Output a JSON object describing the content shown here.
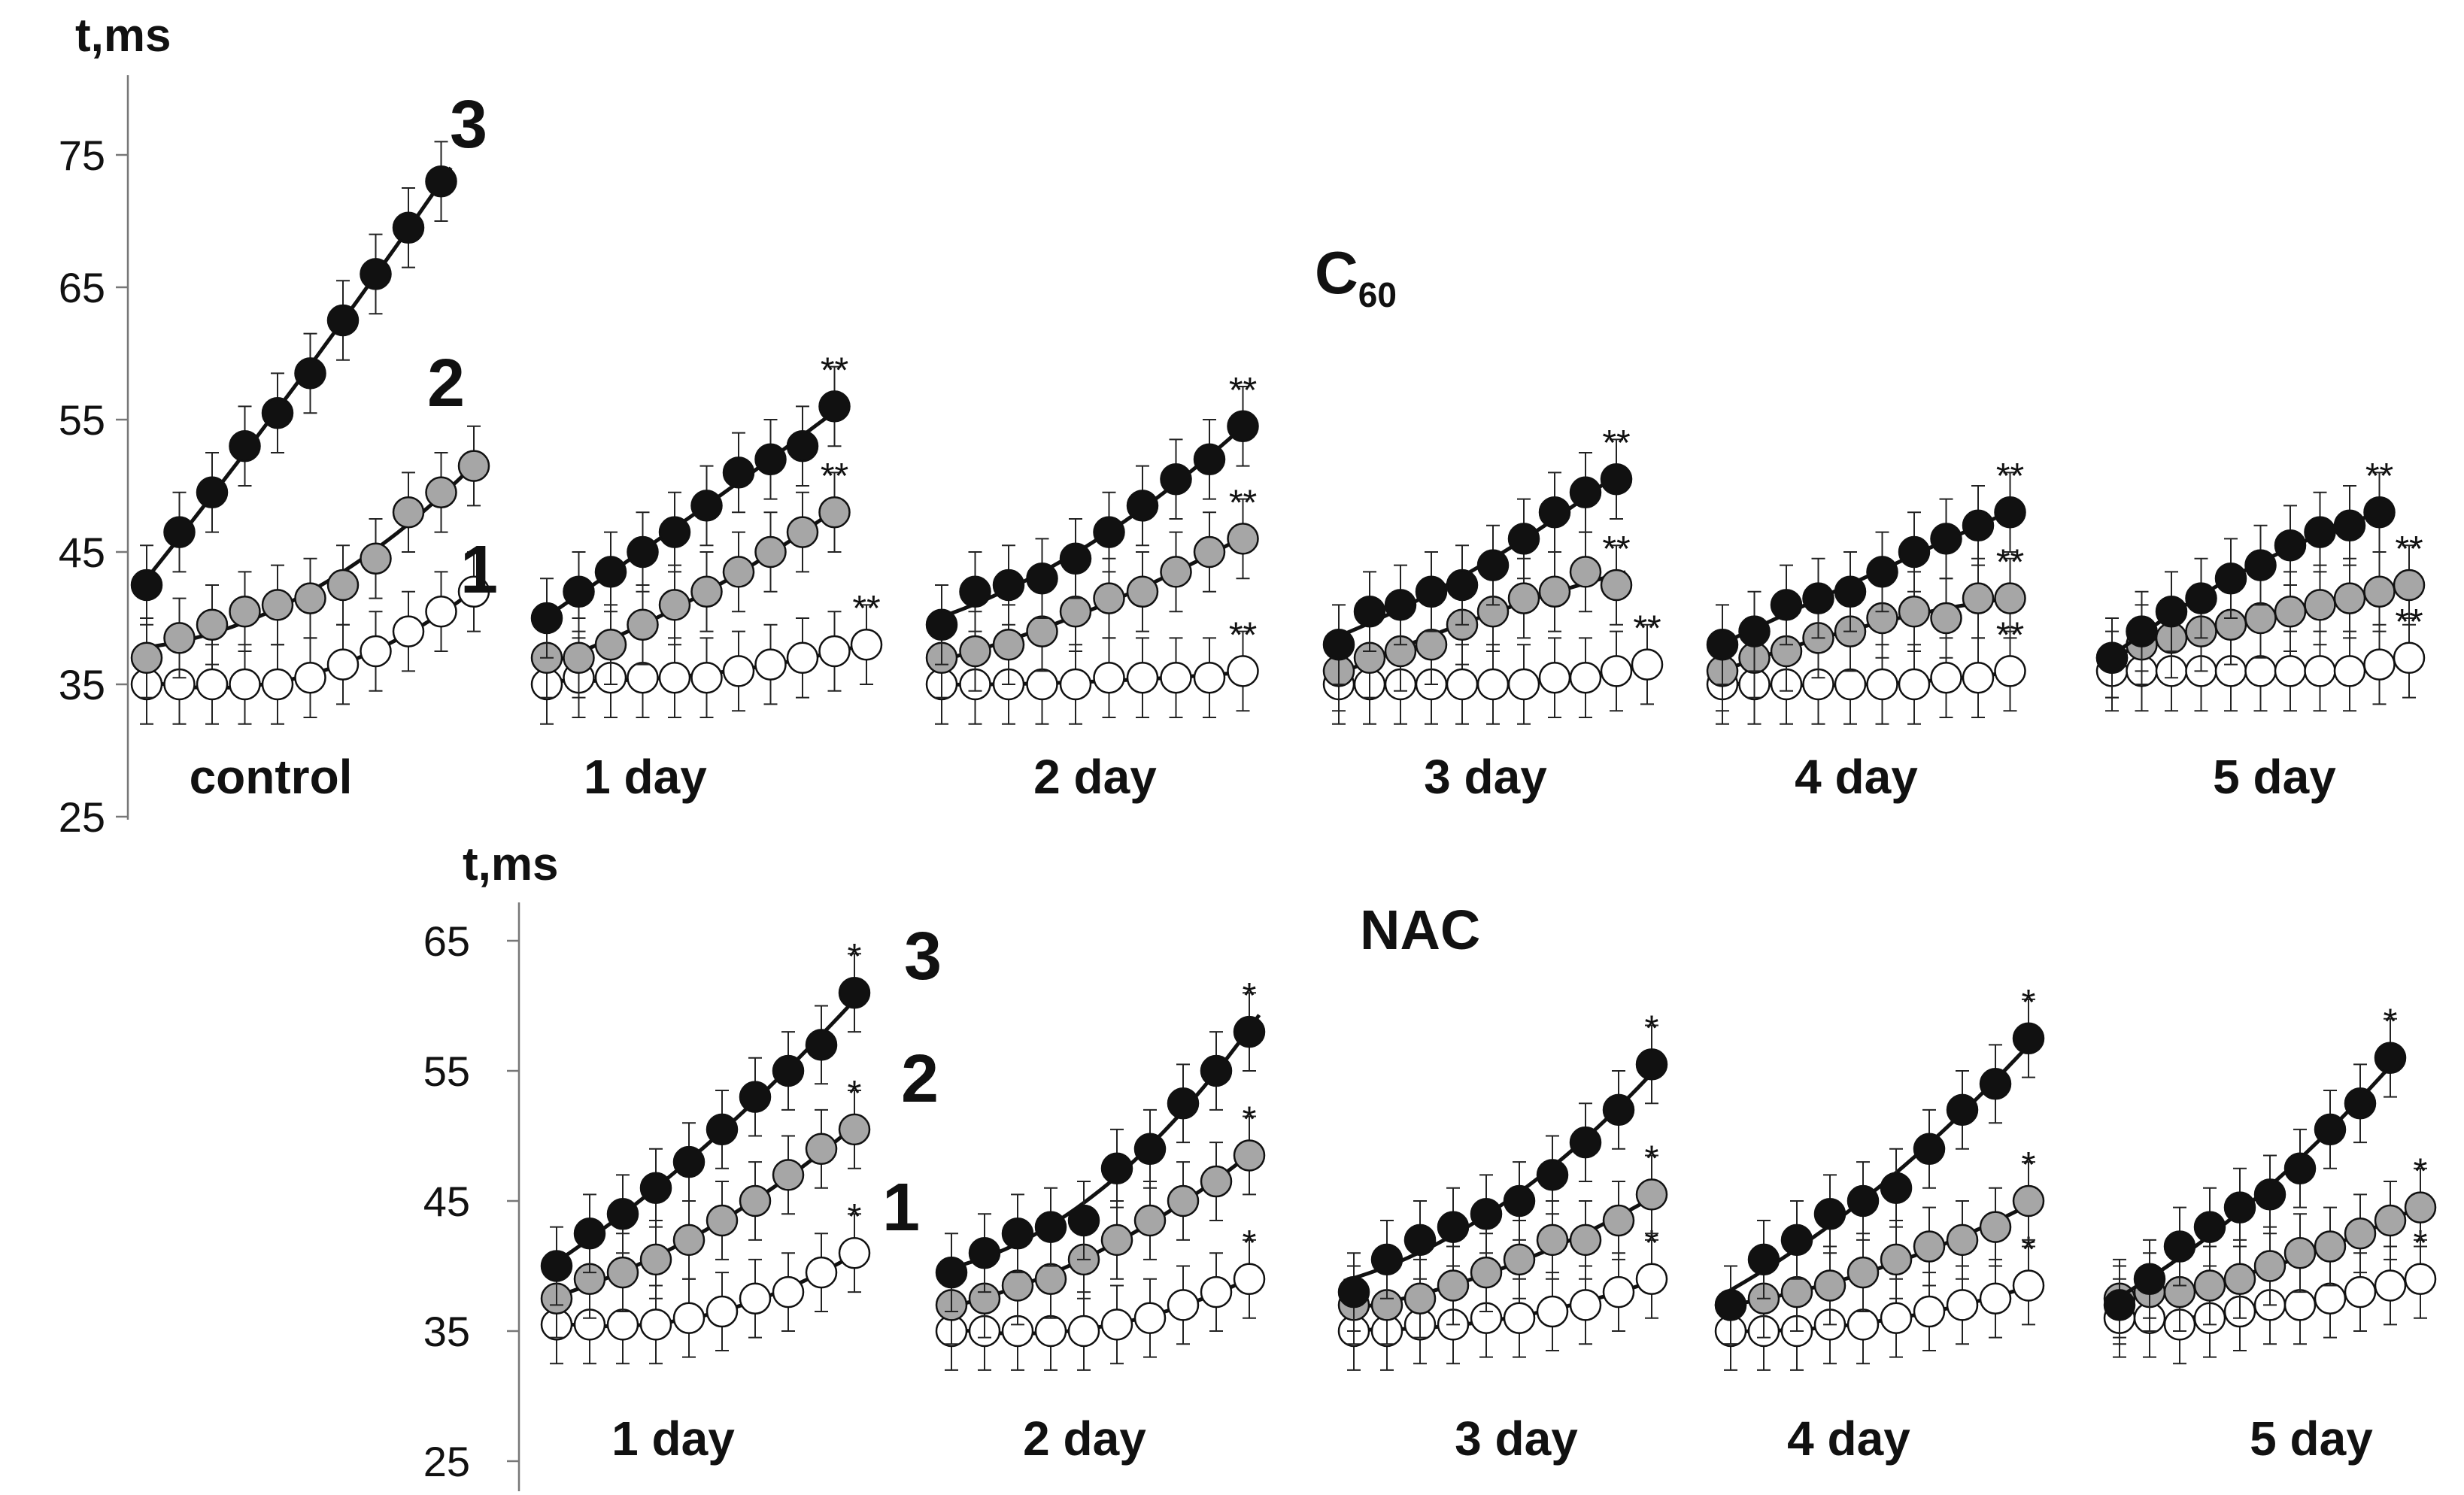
{
  "colors": {
    "series_1": "#ffffff",
    "series_2": "#a6a6a6",
    "series_3": "#111111",
    "axis": "#777777",
    "line": "#111111"
  },
  "chart_data": {
    "type": "scatter",
    "figure_description_groups": [
      "C60",
      "NAC"
    ],
    "series_labels": [
      "1",
      "2",
      "3"
    ],
    "panels": [
      {
        "id": "top",
        "ylabel": "t,ms",
        "yticks": [
          25,
          35,
          45,
          55,
          65,
          75
        ],
        "ylim": [
          25,
          82
        ],
        "group_title": "C",
        "group_title_sub": "60",
        "subpanels": [
          {
            "label": "control",
            "s1": [
              35,
              35,
              35,
              35,
              35,
              35.5,
              36.5,
              37.5,
              39,
              40.5,
              42
            ],
            "s2": [
              37,
              38.5,
              39.5,
              40.5,
              41,
              41.5,
              42.5,
              44.5,
              48,
              49.5,
              51.5
            ],
            "s3": [
              42.5,
              46.5,
              49.5,
              53,
              55.5,
              58.5,
              62.5,
              66,
              69.5,
              73
            ],
            "markers": [
              "",
              "",
              ""
            ]
          },
          {
            "label": "1 day",
            "s1": [
              35,
              35.5,
              35.5,
              35.5,
              35.5,
              35.5,
              36,
              36.5,
              37,
              37.5,
              38
            ],
            "s2": [
              37,
              37,
              38,
              39.5,
              41,
              42,
              43.5,
              45,
              46.5,
              48
            ],
            "s3": [
              40,
              42,
              43.5,
              45,
              46.5,
              48.5,
              51,
              52,
              53,
              56
            ],
            "markers": [
              "**",
              "**",
              "**"
            ]
          },
          {
            "label": "2 day",
            "s1": [
              35,
              35,
              35,
              35,
              35,
              35.5,
              35.5,
              35.5,
              35.5,
              36
            ],
            "s2": [
              37,
              37.5,
              38,
              39,
              40.5,
              41.5,
              42,
              43.5,
              45,
              46
            ],
            "s3": [
              39.5,
              42,
              42.5,
              43,
              44.5,
              46.5,
              48.5,
              50.5,
              52,
              54.5
            ],
            "markers": [
              "**",
              "**",
              "**"
            ]
          },
          {
            "label": "3 day",
            "s1": [
              35,
              35,
              35,
              35,
              35,
              35,
              35,
              35.5,
              35.5,
              36,
              36.5
            ],
            "s2": [
              36,
              37,
              37.5,
              38,
              39.5,
              40.5,
              41.5,
              42,
              43.5,
              42.5
            ],
            "s3": [
              38,
              40.5,
              41,
              42,
              42.5,
              44,
              46,
              48,
              49.5,
              50.5
            ],
            "markers": [
              "**",
              "**",
              "**"
            ]
          },
          {
            "label": "4 day",
            "s1": [
              35,
              35,
              35,
              35,
              35,
              35,
              35,
              35.5,
              35.5,
              36
            ],
            "s2": [
              36,
              37,
              37.5,
              38.5,
              39,
              40,
              40.5,
              40,
              41.5,
              41.5
            ],
            "s3": [
              38,
              39,
              41,
              41.5,
              42,
              43.5,
              45,
              46,
              47,
              48
            ],
            "markers": [
              "**",
              "**",
              "**"
            ]
          },
          {
            "label": "5 day",
            "s1": [
              36,
              36,
              36,
              36,
              36,
              36,
              36,
              36,
              36,
              36.5,
              37
            ],
            "s2": [
              37,
              38,
              38.5,
              39,
              39.5,
              40,
              40.5,
              41,
              41.5,
              42,
              42.5
            ],
            "s3": [
              37,
              39,
              40.5,
              41.5,
              43,
              44,
              45.5,
              46.5,
              47,
              48
            ],
            "markers": [
              "**",
              "**",
              "**"
            ]
          }
        ]
      },
      {
        "id": "bottom",
        "ylabel": "t,ms",
        "yticks": [
          25,
          35,
          45,
          55,
          65
        ],
        "ylim": [
          25,
          68
        ],
        "group_title": "NAC",
        "group_title_sub": "",
        "subpanels": [
          {
            "label": "1 day",
            "s1": [
              35.5,
              35.5,
              35.5,
              35.5,
              36,
              36.5,
              37.5,
              38,
              39.5,
              41
            ],
            "s2": [
              37.5,
              39,
              39.5,
              40.5,
              42,
              43.5,
              45,
              47,
              49,
              50.5
            ],
            "s3": [
              40,
              42.5,
              44,
              46,
              48,
              50.5,
              53,
              55,
              57,
              61
            ],
            "markers": [
              "*",
              "*",
              "*"
            ]
          },
          {
            "label": "2 day",
            "s1": [
              35,
              35,
              35,
              35,
              35,
              35.5,
              36,
              37,
              38,
              39
            ],
            "s2": [
              37,
              37.5,
              38.5,
              39,
              40.5,
              42,
              43.5,
              45,
              46.5,
              48.5
            ],
            "s3": [
              39.5,
              41,
              42.5,
              43,
              43.5,
              47.5,
              49,
              52.5,
              55,
              58
            ],
            "markers": [
              "*",
              "*",
              "*"
            ]
          },
          {
            "label": "3 day",
            "s1": [
              35,
              35,
              35.5,
              35.5,
              36,
              36,
              36.5,
              37,
              38,
              39
            ],
            "s2": [
              37,
              37,
              37.5,
              38.5,
              39.5,
              40.5,
              42,
              42,
              43.5,
              45.5
            ],
            "s3": [
              38,
              40.5,
              42,
              43,
              44,
              45,
              47,
              49.5,
              52,
              55.5
            ],
            "markers": [
              "*",
              "*",
              "*"
            ]
          },
          {
            "label": "4 day",
            "s1": [
              35,
              35,
              35,
              35.5,
              35.5,
              36,
              36.5,
              37,
              37.5,
              38.5
            ],
            "s2": [
              37,
              37.5,
              38,
              38.5,
              39.5,
              40.5,
              41.5,
              42,
              43,
              45
            ],
            "s3": [
              37,
              40.5,
              42,
              44,
              45,
              46,
              49,
              52,
              54,
              57.5
            ],
            "markers": [
              "*",
              "*",
              "*"
            ]
          },
          {
            "label": "5 day",
            "s1": [
              36,
              36,
              35.5,
              36,
              36.5,
              37,
              37,
              37.5,
              38,
              38.5,
              39
            ],
            "s2": [
              37.5,
              38,
              38,
              38.5,
              39,
              40,
              41,
              41.5,
              42.5,
              43.5,
              44.5
            ],
            "s3": [
              37,
              39,
              41.5,
              43,
              44.5,
              45.5,
              47.5,
              50.5,
              52.5,
              56
            ],
            "markers": [
              "*",
              "*",
              "*"
            ]
          }
        ]
      }
    ]
  }
}
